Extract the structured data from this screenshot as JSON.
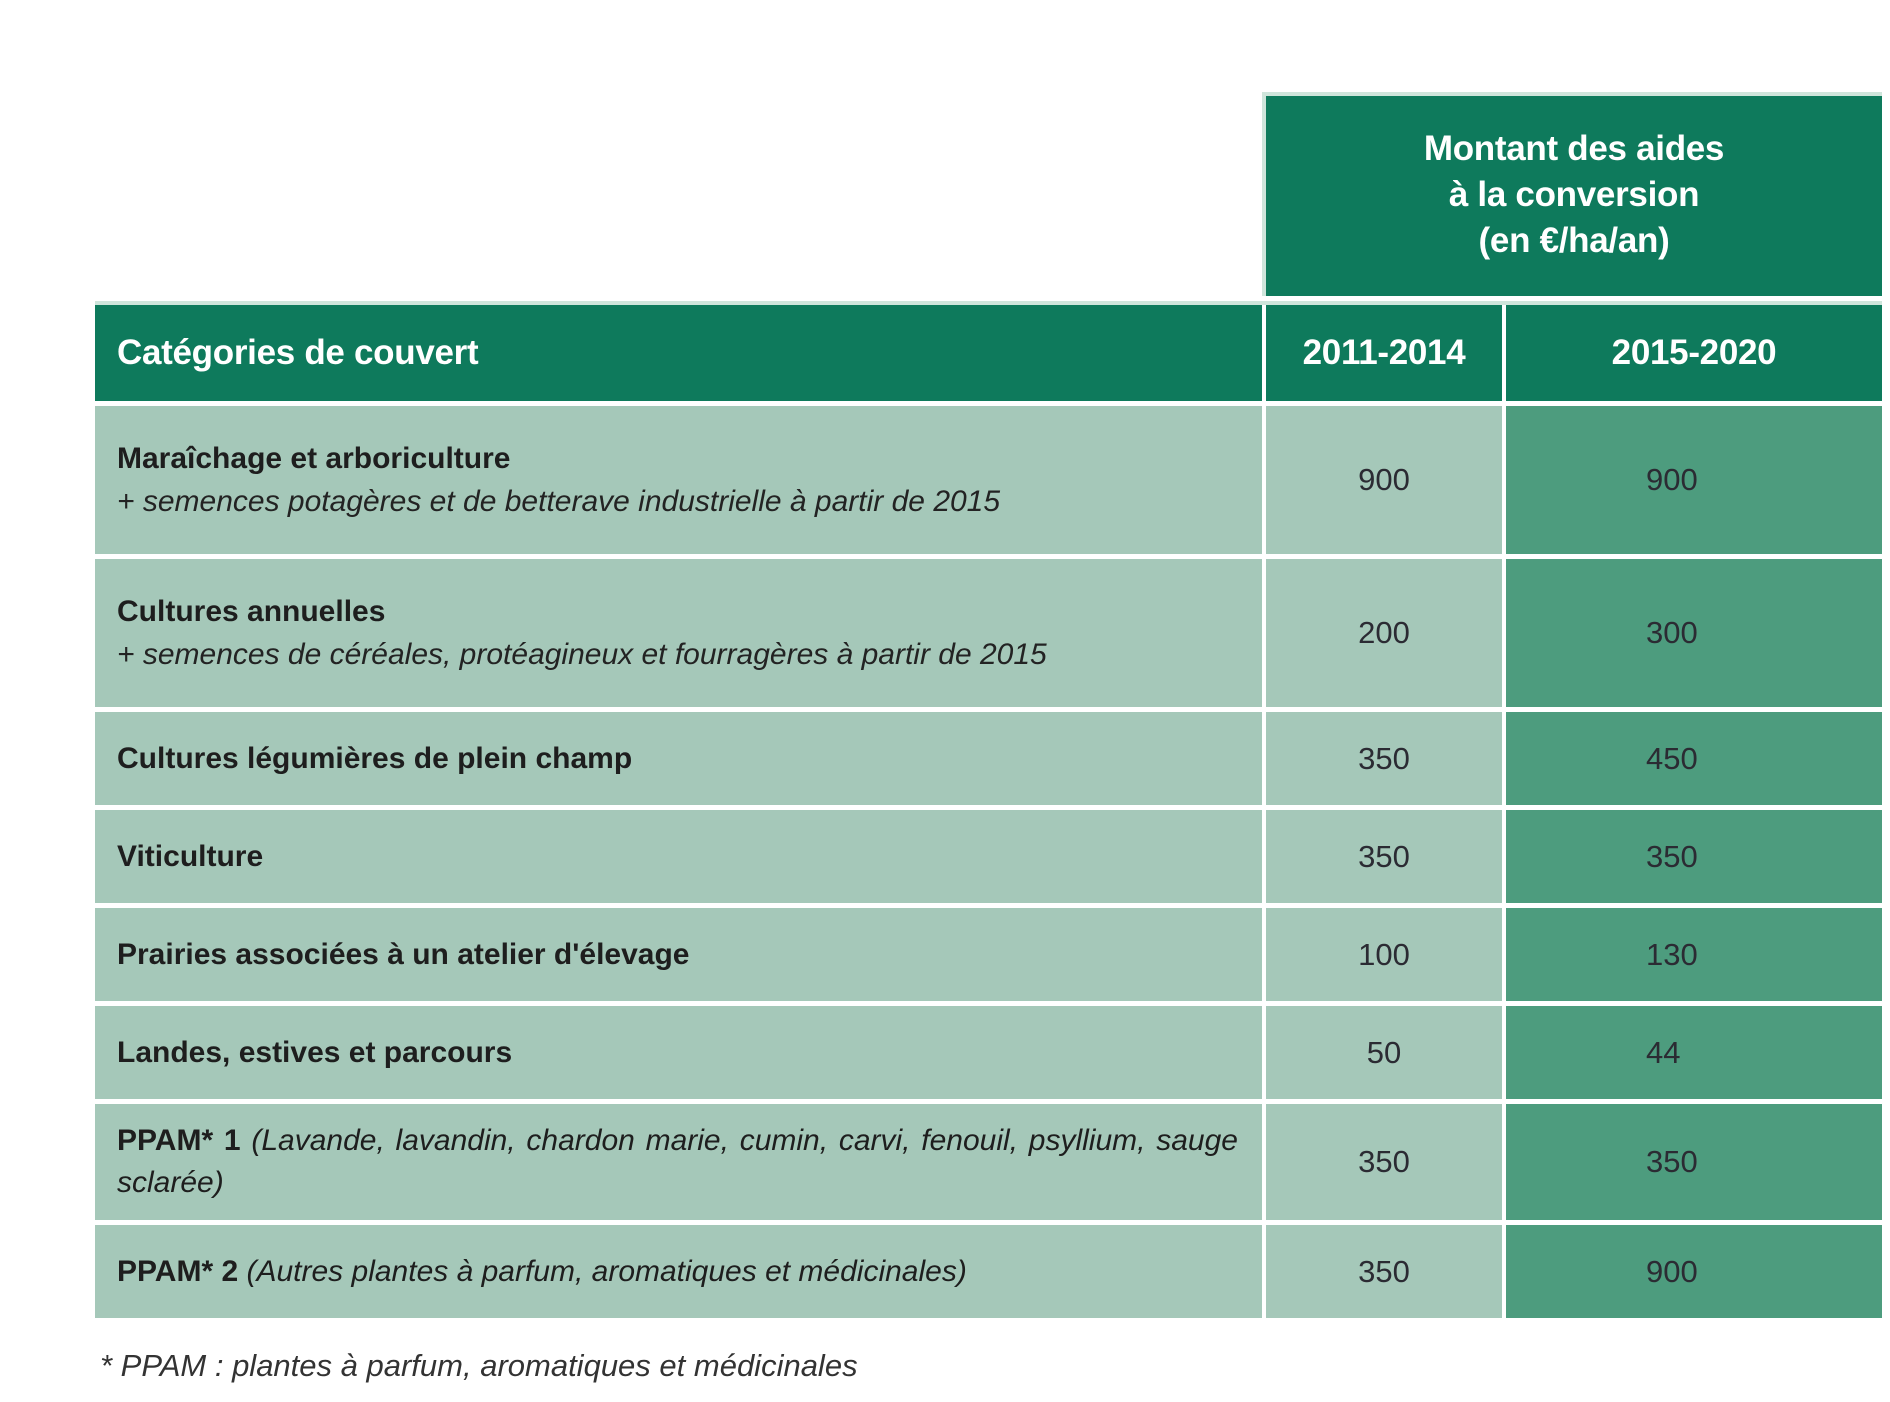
{
  "title_box": {
    "lines": [
      "Montant des aides",
      "à la conversion",
      "(en €/ha/an)"
    ]
  },
  "columns": {
    "category": "Catégories de couvert",
    "p1": "2011-2014",
    "p2": "2015-2020"
  },
  "rows": [
    {
      "title": "Maraîchage et arboriculture",
      "subtitle": "+ semences potagères et de betterave industrielle à partir de 2015",
      "v1": "900",
      "v2": "900"
    },
    {
      "title": "Cultures annuelles",
      "subtitle": "+ semences de céréales, protéagineux et fourragères à partir de 2015",
      "v1": "200",
      "v2": "300"
    },
    {
      "title": "Cultures légumières de plein champ",
      "v1": "350",
      "v2": "450"
    },
    {
      "title": "Viticulture",
      "v1": "350",
      "v2": "350"
    },
    {
      "title": "Prairies associées à un atelier d'élevage",
      "v1": "100",
      "v2": "130"
    },
    {
      "title": "Landes, estives et parcours",
      "v1": "50",
      "v2": "44"
    },
    {
      "title": "PPAM* 1",
      "inline": "(Lavande, lavandin, chardon marie, cumin, carvi, fenouil, psyllium, sauge sclarée)",
      "v1": "350",
      "v2": "350"
    },
    {
      "title": "PPAM* 2",
      "inline": "(Autres plantes à parfum, aromatiques et médicinales)",
      "v1": "350",
      "v2": "900"
    }
  ],
  "footnote": "* PPAM : plantes à parfum, aromatiques et médicinales",
  "colors": {
    "header_green": "#0e7a5c",
    "cell_sage": "#a5c8b9",
    "cell_dark": "#4d9c7e",
    "white": "#ffffff"
  }
}
